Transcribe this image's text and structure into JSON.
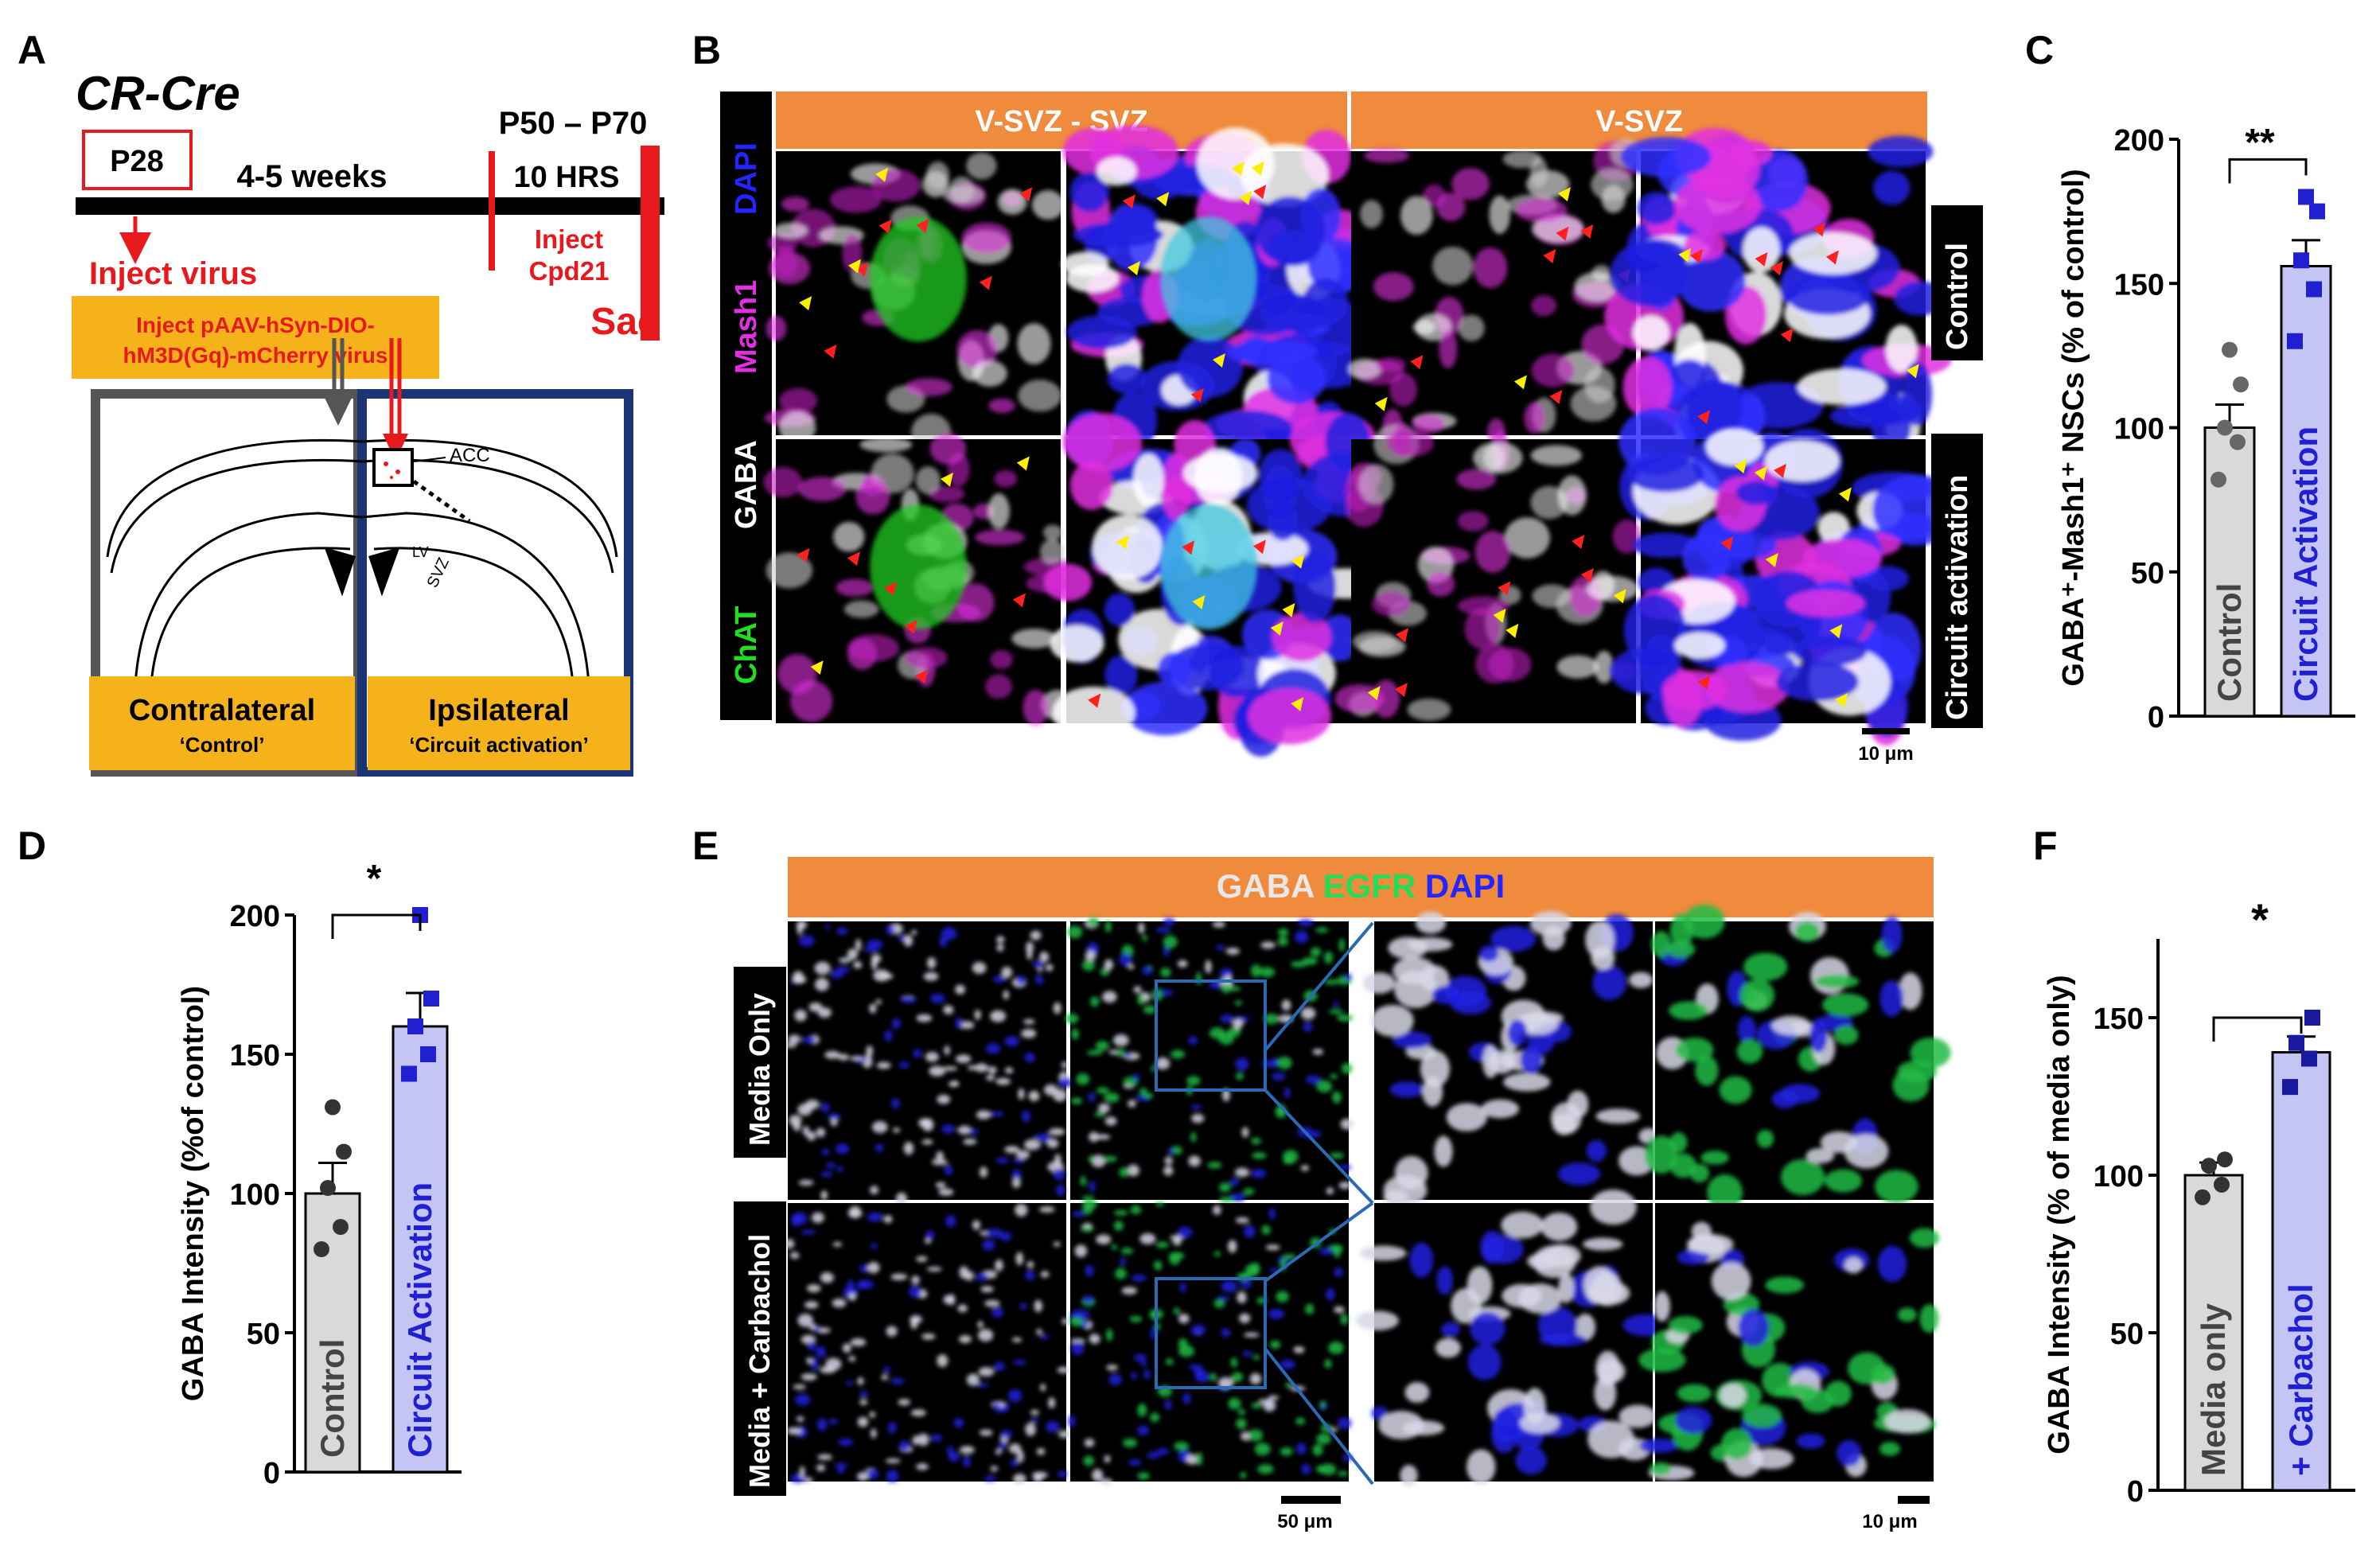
{
  "panel_labels": {
    "a": "A",
    "b": "B",
    "c": "C",
    "d": "D",
    "e": "E",
    "f": "F"
  },
  "panel_a": {
    "title": "CR-Cre",
    "p28": "P28",
    "duration": "4-5 weeks",
    "window": "P50 – P70",
    "hrs": "10 HRS",
    "inject_virus": "Inject virus",
    "inject_cpd_1": "Inject",
    "inject_cpd_2": "Cpd21",
    "sac": "Sac",
    "virus_line1": "Inject pAAV-hSyn-DIO-",
    "virus_line2": "hM3D(Gq)-mCherry virus",
    "acc": "ACC",
    "lv": "LV",
    "svz": "SVZ",
    "contralateral": "Contralateral",
    "control": "‘Control’",
    "ipsilateral": "Ipsilateral",
    "circuit": "‘Circuit activation’",
    "colors": {
      "red": "#e8191d",
      "orange": "#f5b21a",
      "navy": "#1b3476",
      "gray": "#555555"
    }
  },
  "panel_b": {
    "header_left": "V-SVZ - SVZ",
    "header_right": "V-SVZ",
    "stain_dapi": "DAPI",
    "stain_mash1": "Mash1",
    "stain_gaba": "GABA",
    "stain_chat": "ChAT",
    "row1": "Control",
    "row2": "Circuit activation",
    "scale": "10 μm",
    "colors": {
      "header": "#f08a3c",
      "dapi": "#2424ff",
      "mash1": "#e030e0",
      "gaba": "#ffffff",
      "chat": "#22dd22"
    }
  },
  "panel_e": {
    "header_gaba": "GABA",
    "header_egfr": "EGFR",
    "header_dapi": "DAPI",
    "row1": "Media Only",
    "row2": "Media + Carbachol",
    "scale_left": "50 μm",
    "scale_right": "10 μm"
  },
  "panel_c_sig": "**",
  "panel_d_sig": "*",
  "panel_f_sig": "*",
  "chart_data": [
    {
      "type": "bar",
      "panel": "C",
      "ylabel": "GABA⁺-Mash1⁺ NSCs  (% of control)",
      "categories": [
        "Control",
        "Circuit Activation"
      ],
      "values": [
        100,
        156
      ],
      "errors": [
        8,
        9
      ],
      "points": [
        [
          82,
          95,
          100,
          115,
          127
        ],
        [
          130,
          148,
          158,
          175,
          180
        ]
      ],
      "ylim": [
        0,
        200
      ],
      "yticks": [
        "0",
        "50",
        "100",
        "150",
        "200"
      ],
      "colors": [
        "#d9d9d9",
        "#c5c5f5"
      ],
      "point_colors": [
        "#666666",
        "#2020d0"
      ]
    },
    {
      "type": "bar",
      "panel": "D",
      "ylabel": "GABA Intensity (%of control)",
      "categories": [
        "Control",
        "Circuit Activation"
      ],
      "values": [
        100,
        160
      ],
      "errors": [
        11,
        12
      ],
      "points": [
        [
          80,
          88,
          102,
          115,
          131
        ],
        [
          143,
          150,
          160,
          170,
          200
        ]
      ],
      "ylim": [
        0,
        200
      ],
      "yticks": [
        "0",
        "50",
        "100",
        "150",
        "200"
      ],
      "colors": [
        "#d9d9d9",
        "#c5c5f5"
      ],
      "point_colors": [
        "#333333",
        "#2020d0"
      ]
    },
    {
      "type": "bar",
      "panel": "F",
      "ylabel": "GABA Intensity (% of media only)",
      "categories": [
        "Media only",
        "+ Carbachol"
      ],
      "values": [
        100,
        139
      ],
      "errors": [
        4,
        5
      ],
      "points": [
        [
          93,
          97,
          103,
          105
        ],
        [
          128,
          137,
          142,
          150
        ]
      ],
      "ylim": [
        0,
        175
      ],
      "yticks": [
        "0",
        "50",
        "100",
        "150"
      ],
      "colors": [
        "#d9d9d9",
        "#c5c5f5"
      ],
      "point_colors": [
        "#333333",
        "#1a1aa0"
      ]
    }
  ]
}
